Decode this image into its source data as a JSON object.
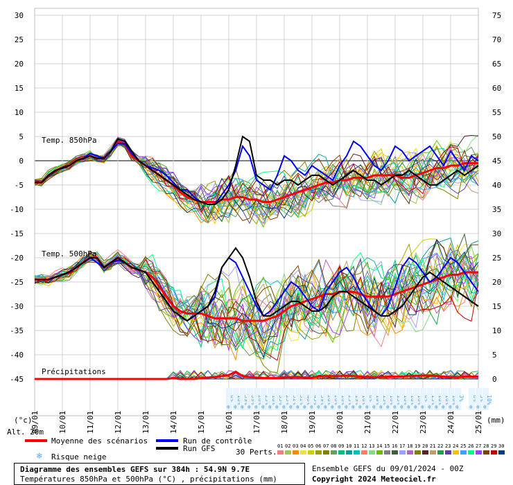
{
  "chart_data": {
    "type": "line",
    "title": "Diagramme des ensembles GEFS sur 384h : 54.9N 9.7E",
    "subtitle": "Températures 850hPa et 500hPa (°C) , précipitations (mm)",
    "left_axis": {
      "unit_label": "(°c)",
      "ticks": [
        30,
        25,
        20,
        15,
        10,
        5,
        0,
        -5,
        -10,
        -15,
        -20,
        -25,
        -30,
        -35,
        -40,
        -45
      ],
      "ylim": [
        -45,
        30
      ]
    },
    "right_axis": {
      "unit_label": "(mm)",
      "ticks": [
        75,
        70,
        65,
        60,
        55,
        50,
        45,
        40,
        35,
        30,
        25,
        20,
        15,
        10,
        5,
        0
      ],
      "ylim": [
        0,
        75
      ]
    },
    "x_labels": [
      "09/01",
      "10/01",
      "11/01",
      "12/01",
      "13/01",
      "14/01",
      "15/01",
      "16/01",
      "17/01",
      "18/01",
      "19/01",
      "20/01",
      "21/01",
      "22/01",
      "23/01",
      "24/01",
      "25/01"
    ],
    "x_step_hours": 6,
    "grid": true,
    "panel_labels": {
      "t850": "Temp. 850hPa",
      "t500": "Temp. 500hPa",
      "precip": "Précipitations"
    },
    "series": [
      {
        "name": "Moyenne des scénarios",
        "color": "#ff0000",
        "level": "850hPa",
        "values": [
          -4.5,
          -4.5,
          -3,
          -2,
          -1.5,
          -1,
          0,
          0.5,
          1,
          0.5,
          0.5,
          2,
          4,
          3.5,
          1,
          0,
          -1,
          -2,
          -3,
          -4,
          -5,
          -6.5,
          -7.5,
          -8,
          -8.5,
          -8.5,
          -8.5,
          -8,
          -8,
          -7.5,
          -7.5,
          -8,
          -8,
          -8.5,
          -8.5,
          -8,
          -7.5,
          -7,
          -6.5,
          -6,
          -5.5,
          -5,
          -4.5,
          -4.5,
          -4,
          -4,
          -3.5,
          -3.5,
          -3.5,
          -3,
          -3,
          -3,
          -3,
          -3.5,
          -3.5,
          -3,
          -2.5,
          -2,
          -1.5,
          -1.5,
          -1,
          -1,
          -0.5,
          -0.5,
          -0.5
        ]
      },
      {
        "name": "Moyenne des scénarios",
        "color": "#ff0000",
        "level": "500hPa",
        "values": [
          -24.5,
          -24.5,
          -24.5,
          -24,
          -23.5,
          -23,
          -22,
          -21,
          -20,
          -20,
          -22,
          -21,
          -20,
          -21,
          -22,
          -22.5,
          -23,
          -24,
          -26,
          -28,
          -30,
          -31,
          -31.5,
          -31.5,
          -31.5,
          -32,
          -32.5,
          -32.5,
          -32.5,
          -32.5,
          -33,
          -33,
          -33,
          -33,
          -32.5,
          -32,
          -31,
          -30,
          -29.5,
          -29,
          -28.5,
          -28,
          -27.5,
          -27.5,
          -27,
          -27,
          -27,
          -27.5,
          -28,
          -28,
          -28,
          -28,
          -27.5,
          -27,
          -26.5,
          -26,
          -25.5,
          -25,
          -24.5,
          -24,
          -23.5,
          -23.5,
          -23,
          -23,
          -23
        ]
      },
      {
        "name": "Moyenne des scénarios",
        "color": "#ff0000",
        "level": "precip_mm",
        "values": [
          0,
          0,
          0,
          0,
          0,
          0,
          0,
          0,
          0,
          0,
          0,
          0,
          0,
          0,
          0,
          0,
          0,
          0,
          0,
          0,
          0.2,
          0,
          0,
          0,
          0.2,
          0.3,
          0.4,
          0.6,
          0.8,
          1.5,
          0.6,
          0.4,
          0.3,
          0.2,
          0.2,
          0.2,
          0.3,
          0.4,
          0.4,
          0.3,
          0.3,
          0.5,
          0.6,
          0.6,
          0.6,
          0.7,
          0.6,
          0.5,
          0.4,
          0.4,
          0.4,
          0.5,
          0.5,
          0.5,
          0.6,
          0.7,
          0.7,
          0.7,
          0.6,
          0.5,
          0.4,
          0.4,
          0.5,
          0.5,
          0.5
        ]
      },
      {
        "name": "Run de contrôle",
        "color": "#0000ff",
        "level": "850hPa",
        "values": [
          -4.5,
          -4.5,
          -3,
          -2,
          -1.5,
          -1,
          0,
          0.5,
          1.5,
          1,
          0.5,
          2,
          3.5,
          3.5,
          1.5,
          0,
          -1,
          -1.5,
          -2,
          -3,
          -4.5,
          -6,
          -6,
          -7.5,
          -8.5,
          -9,
          -9,
          -7,
          -5,
          -2,
          3,
          1,
          -4,
          -5,
          -6,
          -3,
          1,
          0,
          -2,
          -3,
          -1,
          -2,
          -3,
          -4,
          -1,
          1,
          4,
          3,
          1,
          -1,
          -2,
          0,
          3,
          2,
          0,
          1,
          2,
          3,
          1,
          -1,
          2,
          0,
          -2,
          1,
          0
        ]
      },
      {
        "name": "Run de contrôle",
        "color": "#0000ff",
        "level": "500hPa",
        "values": [
          -24.5,
          -24.5,
          -24.5,
          -24,
          -23.5,
          -23,
          -22,
          -21,
          -20,
          -21,
          -22,
          -21,
          -20.5,
          -21,
          -22,
          -22.5,
          -23,
          -25,
          -27,
          -29,
          -31,
          -32,
          -33,
          -32,
          -31,
          -30,
          -28,
          -22,
          -20,
          -21,
          -24,
          -27,
          -30,
          -32,
          -31,
          -29,
          -27,
          -25,
          -26,
          -28,
          -30,
          -31,
          -27,
          -25,
          -23,
          -22,
          -24,
          -27,
          -29,
          -31,
          -32,
          -30,
          -26,
          -22,
          -20,
          -21,
          -23,
          -25,
          -24,
          -22,
          -20,
          -21,
          -23,
          -25,
          -27
        ]
      },
      {
        "name": "Run GFS",
        "color": "#000000",
        "level": "850hPa",
        "values": [
          -4.5,
          -4.5,
          -3,
          -2,
          -1.5,
          -1,
          0,
          0.5,
          1,
          0.5,
          0.5,
          2,
          4.5,
          4,
          2,
          0,
          -1,
          -2,
          -3,
          -4,
          -5,
          -6,
          -7,
          -8,
          -8.5,
          -9,
          -9,
          -8,
          -6,
          -1,
          5,
          4,
          -3,
          -4,
          -4,
          -5,
          -4,
          -4,
          -5,
          -4,
          -3,
          -3,
          -4,
          -5,
          -4,
          -3,
          -2,
          -3,
          -4,
          -4,
          -5,
          -4,
          -3,
          -3,
          -2,
          -3,
          -4,
          -5,
          -5,
          -4,
          -3,
          -2,
          -3,
          -2,
          -1
        ]
      },
      {
        "name": "Run GFS",
        "color": "#000000",
        "level": "500hPa",
        "values": [
          -24.5,
          -24.5,
          -24.5,
          -24,
          -23.5,
          -23,
          -22,
          -21,
          -20,
          -20,
          -22,
          -21,
          -20,
          -21,
          -22,
          -22.5,
          -23,
          -25,
          -27,
          -29,
          -31,
          -32,
          -33,
          -32,
          -31,
          -30,
          -27,
          -22,
          -20,
          -18,
          -20,
          -24,
          -29,
          -32,
          -32,
          -31,
          -30,
          -29,
          -29,
          -30,
          -31,
          -31,
          -30,
          -28,
          -27,
          -27,
          -28,
          -29,
          -30,
          -31,
          -32,
          -32,
          -31,
          -30,
          -28,
          -26,
          -24,
          -23,
          -24,
          -25,
          -26,
          -27,
          -28,
          -29,
          -30
        ]
      }
    ],
    "perturbation_colors": [
      "#f08080",
      "#a0c850",
      "#ff8c00",
      "#f0e040",
      "#d0d000",
      "#a0a000",
      "#808000",
      "#60a060",
      "#00c080",
      "#00a0a0",
      "#00c0c0",
      "#ff8060",
      "#80e080",
      "#60c000",
      "#808080",
      "#406040",
      "#a0a0ff",
      "#c060c0",
      "#808000",
      "#602020",
      "#c0a060",
      "#20a040",
      "#6040a0",
      "#ffc000",
      "#40a0ff",
      "#00ff80",
      "#a040ff",
      "#804000",
      "#c00000",
      "#004080"
    ],
    "snow_risk_percent": {
      "positions": [
        28,
        29,
        30,
        31,
        32,
        33,
        34,
        35,
        36,
        37,
        38,
        39,
        40,
        41,
        42,
        43,
        44,
        45,
        46,
        47,
        48,
        49,
        50,
        51,
        52,
        53,
        54,
        55,
        56,
        57,
        58,
        59,
        60,
        61,
        63,
        64,
        65
      ],
      "values": [
        "6%",
        "16%",
        "39%",
        "39%",
        "26%",
        "23%",
        "16%",
        "35%",
        "23%",
        "32%",
        "32%",
        "48%",
        "45%",
        "39%",
        "26%",
        "26%",
        "16%",
        "23%",
        "19%",
        "10%",
        "6%",
        "10%",
        "13%",
        "16%",
        "13%",
        "16%",
        "16%",
        "16%",
        "6%",
        "13%",
        "16%",
        "10%",
        "10%",
        "3%",
        "6%",
        "3%",
        "10%"
      ]
    }
  },
  "labels": {
    "alt": "Alt. 20m",
    "legend_mean": "Moyenne des scénarios",
    "legend_control": "Run de contrôle",
    "legend_gfs": "Run GFS",
    "legend_snow": "Risque neige",
    "perts_label": "30 Perts.",
    "pert_numbers": [
      "01",
      "02",
      "03",
      "04",
      "05",
      "06",
      "07",
      "08",
      "09",
      "10",
      "11",
      "12",
      "13",
      "14",
      "15",
      "16",
      "17",
      "18",
      "19",
      "20",
      "21",
      "22",
      "23",
      "24",
      "25",
      "26",
      "27",
      "28",
      "29",
      "30"
    ],
    "title_line1": "Diagramme des ensembles GEFS sur 384h : 54.9N 9.7E",
    "title_line2": "Températures 850hPa et 500hPa (°C) , précipitations (mm)",
    "run_info": "Ensemble GEFS du 09/01/2024 - 00Z",
    "copyright": "Copyright 2024 Meteociel.fr"
  },
  "colors": {
    "mean": "#ff0000",
    "control": "#0000ff",
    "gfs": "#000000",
    "snow": "#5aa8e8",
    "grid": "#d0d0d0"
  }
}
